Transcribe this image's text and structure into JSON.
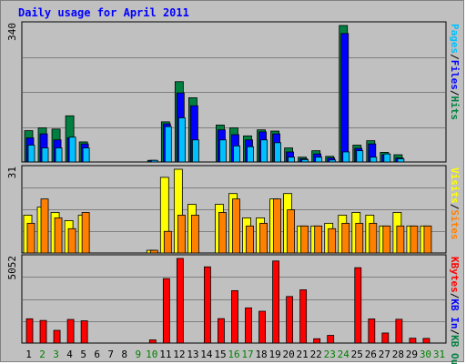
{
  "title": "Daily usage for April 2011",
  "chart_data": {
    "type": "bar",
    "title": "Daily usage for April 2011",
    "days": [
      "1",
      "2",
      "3",
      "4",
      "5",
      "6",
      "7",
      "8",
      "9",
      "10",
      "11",
      "12",
      "13",
      "14",
      "15",
      "16",
      "17",
      "18",
      "19",
      "20",
      "21",
      "22",
      "23",
      "24",
      "25",
      "26",
      "27",
      "28",
      "29",
      "30",
      "31"
    ],
    "weekend_days": [
      "2",
      "3",
      "9",
      "10",
      "16",
      "17",
      "23",
      "24",
      "30",
      "31"
    ],
    "colors": {
      "pages": "#00c0ff",
      "files": "#0000ff",
      "hits": "#008040",
      "visits": "#ffff00",
      "sites": "#ff8000",
      "kbytes": "#ff0000",
      "weekday_label": "#000000",
      "weekend_label": "#008000"
    },
    "panels": [
      {
        "max_label": "340",
        "max": 340,
        "legend": [
          {
            "text": "Pages",
            "color": "#00c0ff"
          },
          {
            "text": "/",
            "color": "#000000"
          },
          {
            "text": "Files",
            "color": "#0000ff"
          },
          {
            "text": "/",
            "color": "#000000"
          },
          {
            "text": "Hits",
            "color": "#008040"
          }
        ],
        "series": [
          {
            "name": "Hits",
            "color": "#008040",
            "values": [
              78,
              85,
              82,
              115,
              50,
              0,
              0,
              0,
              0,
              4,
              100,
              200,
              160,
              0,
              92,
              85,
              65,
              80,
              77,
              35,
              12,
              28,
              14,
              340,
              42,
              53,
              24,
              18,
              0,
              0,
              0
            ]
          },
          {
            "name": "Files",
            "color": "#0000ff",
            "values": [
              60,
              70,
              55,
              60,
              45,
              0,
              0,
              0,
              0,
              4,
              95,
              172,
              140,
              0,
              80,
              68,
              55,
              75,
              70,
              25,
              8,
              20,
              10,
              320,
              34,
              45,
              18,
              10,
              0,
              0,
              0
            ]
          },
          {
            "name": "Pages",
            "color": "#00c0ff",
            "values": [
              42,
              35,
              35,
              62,
              35,
              0,
              0,
              0,
              0,
              4,
              88,
              110,
              55,
              0,
              55,
              40,
              38,
              55,
              48,
              12,
              6,
              12,
              5,
              25,
              28,
              12,
              20,
              8,
              0,
              0,
              0
            ]
          }
        ]
      },
      {
        "max_label": "31",
        "max": 31,
        "legend": [
          {
            "text": "Visits",
            "color": "#ffff00"
          },
          {
            "text": "/",
            "color": "#000000"
          },
          {
            "text": "Sites",
            "color": "#ff8000"
          }
        ],
        "series": [
          {
            "name": "Visits",
            "color": "#ffff00",
            "values": [
              14,
              17,
              15,
              12,
              14,
              0,
              0,
              0,
              0,
              1,
              28,
              31,
              18,
              0,
              18,
              22,
              13,
              13,
              20,
              22,
              10,
              10,
              11,
              14,
              15,
              14,
              10,
              15,
              10,
              10,
              0
            ]
          },
          {
            "name": "Sites",
            "color": "#ff8000",
            "values": [
              11,
              20,
              13,
              9,
              15,
              0,
              0,
              0,
              0,
              1,
              8,
              14,
              14,
              0,
              15,
              20,
              10,
              11,
              20,
              16,
              10,
              10,
              9,
              11,
              11,
              11,
              10,
              10,
              10,
              10,
              0
            ]
          }
        ]
      },
      {
        "max_label": "5052",
        "max": 5052,
        "legend": [
          {
            "text": "KBytes",
            "color": "#ff0000"
          },
          {
            "text": "/",
            "color": "#000000"
          },
          {
            "text": "KB In",
            "color": "#0000ff"
          },
          {
            "text": "/",
            "color": "#000000"
          },
          {
            "text": "KB Out",
            "color": "#008040"
          }
        ],
        "series": [
          {
            "name": "KBytes",
            "color": "#ff0000",
            "values": [
              1450,
              1350,
              760,
              1410,
              1330,
              0,
              0,
              0,
              0,
              190,
              3850,
              5052,
              0,
              4550,
              1460,
              3130,
              2100,
              1900,
              4900,
              2780,
              3180,
              260,
              460,
              0,
              4500,
              1440,
              600,
              1420,
              290,
              280,
              0
            ]
          }
        ]
      }
    ]
  }
}
